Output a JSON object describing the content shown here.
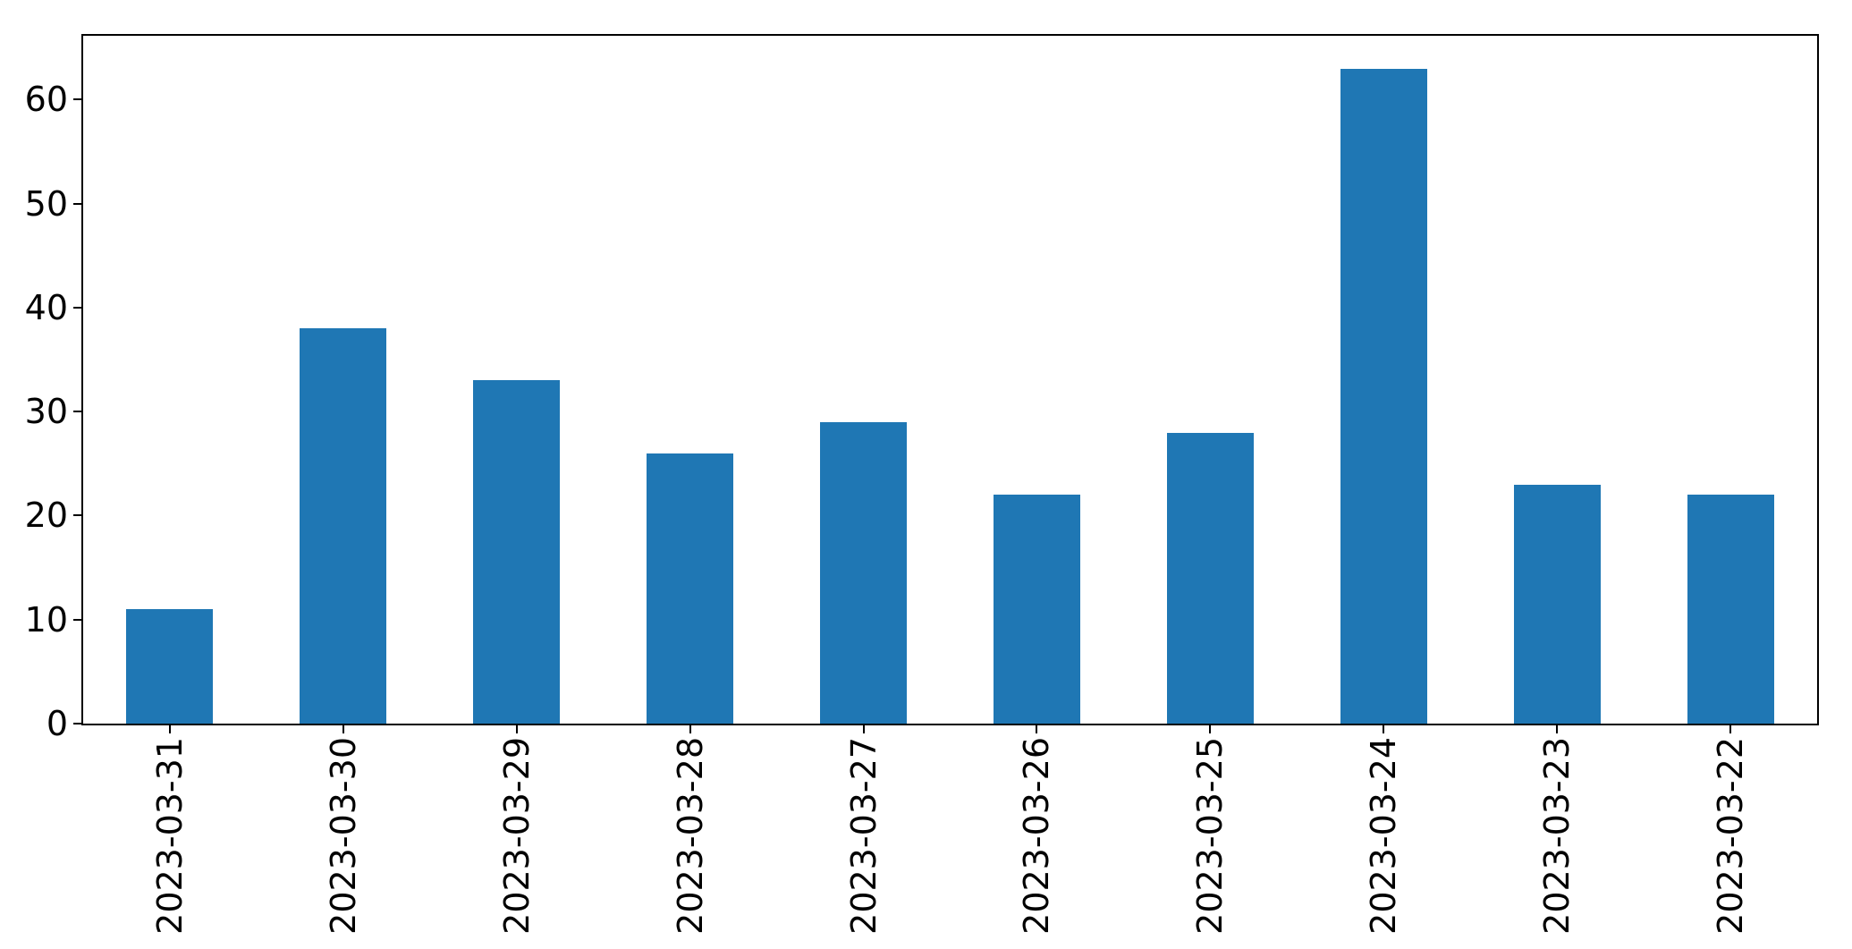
{
  "chart_data": {
    "type": "bar",
    "title": "",
    "xlabel": "",
    "ylabel": "",
    "categories": [
      "2023-03-31",
      "2023-03-30",
      "2023-03-29",
      "2023-03-28",
      "2023-03-27",
      "2023-03-26",
      "2023-03-25",
      "2023-03-24",
      "2023-03-23",
      "2023-03-22"
    ],
    "values": [
      11,
      38,
      33,
      26,
      29,
      22,
      28,
      63,
      23,
      22
    ],
    "yticks": [
      0,
      10,
      20,
      30,
      40,
      50,
      60
    ],
    "ylim": [
      0,
      66.15
    ],
    "grid": "off",
    "legend": "none",
    "x_tick_label_rotation_degrees": 90,
    "bar_color": "#1f77b4",
    "axis_color": "#000000",
    "text_color": "#000000",
    "background_color": "#ffffff"
  }
}
